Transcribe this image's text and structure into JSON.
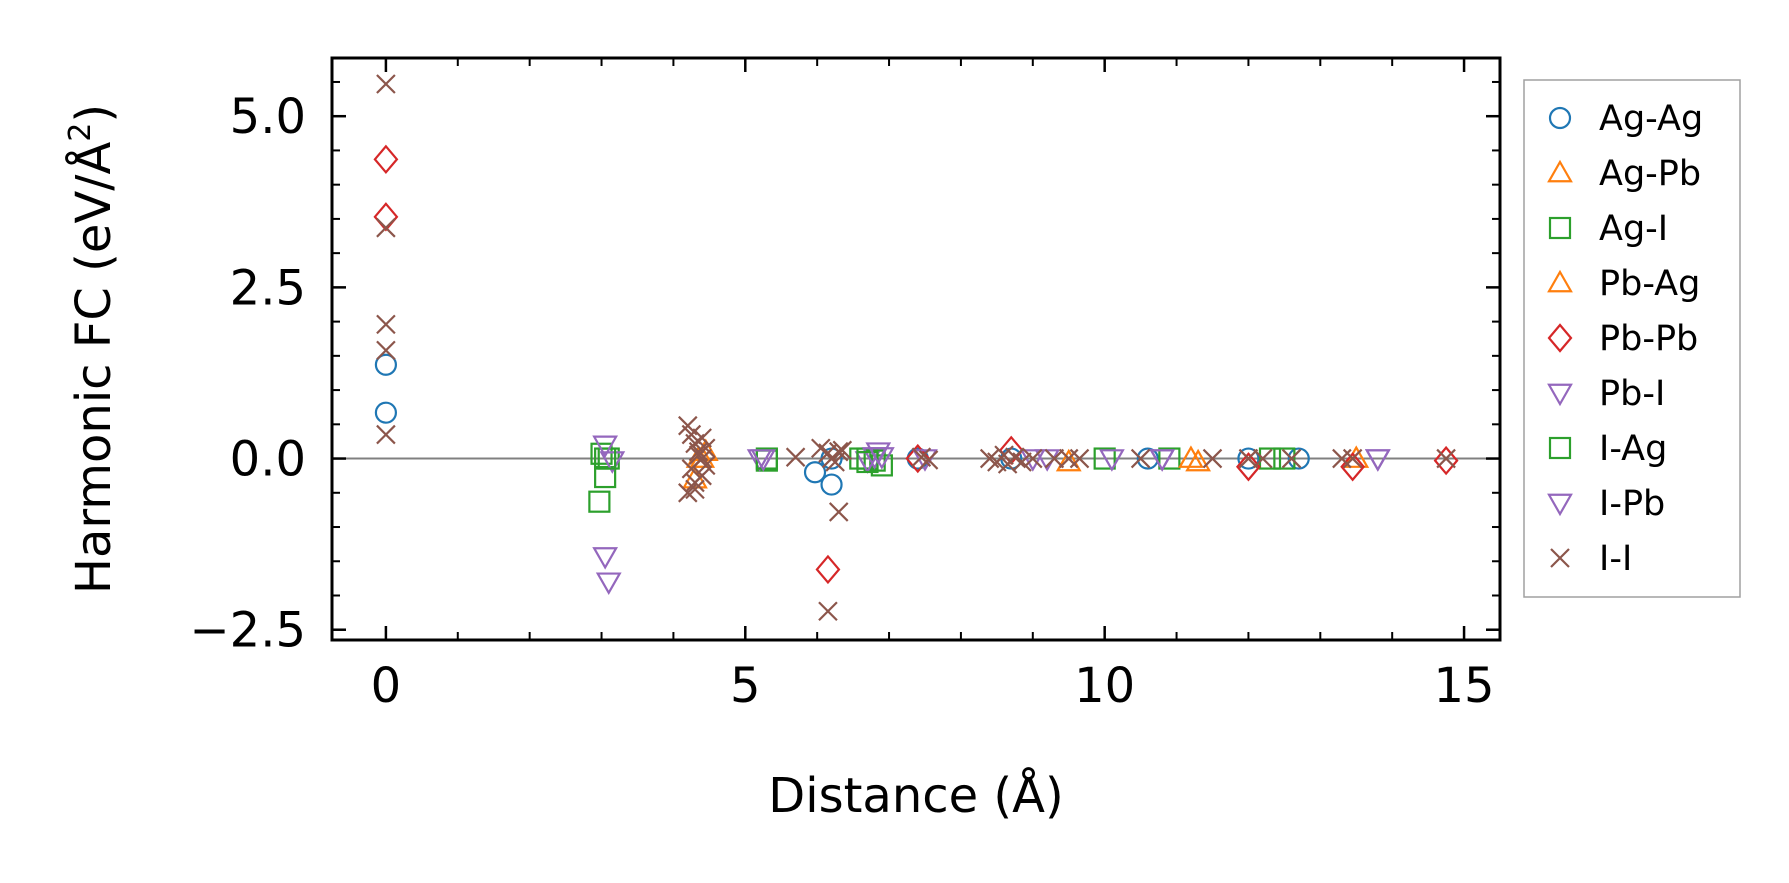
{
  "chart_data": {
    "type": "scatter",
    "title": "",
    "xlabel": "Distance (Å)",
    "ylabel_main": "Harmonic FC (eV/Å",
    "ylabel_sup": "2",
    "ylabel_close": ")",
    "xlim": [
      -0.75,
      15.5
    ],
    "ylim": [
      -2.65,
      5.85
    ],
    "xticks": [
      0,
      5,
      10,
      15
    ],
    "xtick_labels": [
      "0",
      "5",
      "10",
      "15"
    ],
    "yticks": [
      -2.5,
      0.0,
      2.5,
      5.0
    ],
    "ytick_labels": [
      "−2.5",
      "0.0",
      "2.5",
      "5.0"
    ],
    "grid": false,
    "zero_line": true,
    "legend_position": "right-outside-top",
    "series": [
      {
        "name": "Ag-Ag",
        "marker": "circle",
        "color": "#1f77b4",
        "x": [
          0,
          0,
          5.97,
          6.2,
          6.2,
          7.4,
          8.7,
          10.6,
          12.0,
          12.7
        ],
        "y": [
          1.37,
          0.67,
          -0.2,
          -0.38,
          0.0,
          0.0,
          0.0,
          0.0,
          0.0,
          0.0
        ]
      },
      {
        "name": "Ag-Pb",
        "marker": "triangle-up",
        "color": "#ff7f0e",
        "x": [
          4.3,
          4.4,
          9.5,
          11.3,
          13.5
        ],
        "y": [
          -0.3,
          0.0,
          -0.05,
          -0.05,
          0.0
        ]
      },
      {
        "name": "Ag-I",
        "marker": "square",
        "color": "#2ca02c",
        "x": [
          2.97,
          3.0,
          3.05,
          3.1,
          5.3,
          6.6,
          6.7,
          6.8,
          6.9,
          10.0,
          10.9,
          12.3
        ],
        "y": [
          -0.63,
          0.07,
          -0.27,
          0.0,
          -0.03,
          0.0,
          0.0,
          -0.03,
          -0.1,
          0.0,
          0.0,
          0.0
        ]
      },
      {
        "name": "Pb-Ag",
        "marker": "triangle-up",
        "color": "#ff7f0e",
        "x": [
          4.35,
          4.45,
          11.2
        ],
        "y": [
          0.0,
          0.1,
          0.0
        ]
      },
      {
        "name": "Pb-Pb",
        "marker": "diamond",
        "color": "#d62728",
        "x": [
          0,
          0,
          6.15,
          7.4,
          8.7,
          12.0,
          13.45,
          14.75
        ],
        "y": [
          4.37,
          3.53,
          -1.62,
          0.0,
          0.12,
          -0.12,
          -0.12,
          -0.03
        ]
      },
      {
        "name": "Pb-I",
        "marker": "triangle-down",
        "color": "#9467bd",
        "x": [
          3.05,
          3.1,
          3.15,
          5.2,
          6.7,
          6.8,
          6.9,
          7.5,
          9.2,
          10.1,
          10.8,
          13.8
        ],
        "y": [
          -1.43,
          -1.8,
          -0.03,
          0.0,
          -0.03,
          0.03,
          0.03,
          0.0,
          0.0,
          0.0,
          0.0,
          0.0
        ]
      },
      {
        "name": "I-Ag",
        "marker": "square",
        "color": "#2ca02c",
        "x": [
          3.05,
          5.3,
          6.7,
          12.5
        ],
        "y": [
          0.0,
          0.0,
          -0.05,
          0.0
        ]
      },
      {
        "name": "I-Pb",
        "marker": "triangle-down",
        "color": "#9467bd",
        "x": [
          3.05,
          5.25,
          6.85,
          9.0,
          10.8,
          13.8
        ],
        "y": [
          0.2,
          0.0,
          0.1,
          0.0,
          0.0,
          0.0
        ]
      },
      {
        "name": "I-I",
        "marker": "x",
        "color": "#8c564b",
        "x": [
          0,
          0,
          0,
          0,
          0,
          4.2,
          4.25,
          4.3,
          4.35,
          4.4,
          4.45,
          4.2,
          4.3,
          4.4,
          4.25,
          4.35,
          4.45,
          4.3,
          4.4,
          5.7,
          6.05,
          6.15,
          6.2,
          6.25,
          6.3,
          6.35,
          6.15,
          6.3,
          7.45,
          7.55,
          8.4,
          8.5,
          8.6,
          8.65,
          8.75,
          8.85,
          9.0,
          9.3,
          9.5,
          9.65,
          10.5,
          11.5,
          12.0,
          12.2,
          12.6,
          13.3,
          13.45,
          14.75
        ],
        "y": [
          5.47,
          3.37,
          1.96,
          1.58,
          0.35,
          0.48,
          0.35,
          0.22,
          0.1,
          0.0,
          -0.1,
          -0.5,
          -0.35,
          -0.25,
          -0.15,
          0.05,
          0.15,
          -0.45,
          0.3,
          0.02,
          0.15,
          0.08,
          0.0,
          -0.05,
          -0.78,
          0.12,
          -2.23,
          0.1,
          0.02,
          -0.02,
          0.0,
          -0.05,
          0.05,
          -0.08,
          0.02,
          -0.05,
          0.0,
          0.0,
          0.0,
          0.0,
          0.0,
          0.0,
          0.0,
          0.0,
          0.0,
          0.0,
          0.0,
          0.0
        ]
      }
    ]
  }
}
